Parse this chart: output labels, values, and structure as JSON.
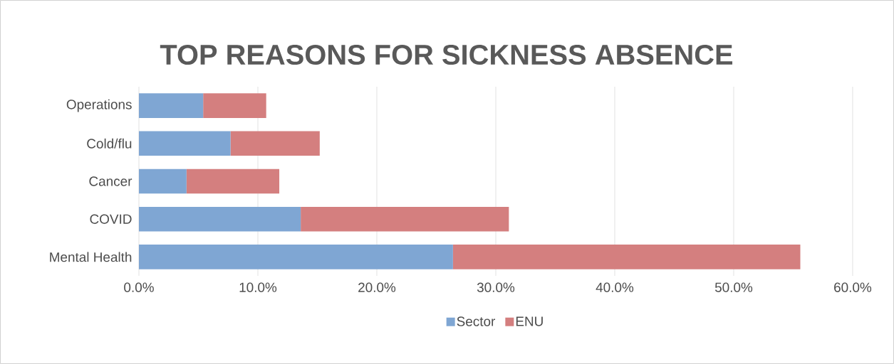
{
  "chart_data": {
    "type": "bar",
    "title": "TOP REASONS FOR SICKNESS ABSENCE",
    "orientation": "horizontal",
    "stacked": true,
    "categories": [
      "Operations",
      "Cold/flu",
      "Cancer",
      "COVID",
      "Mental Health"
    ],
    "series": [
      {
        "name": "Sector",
        "color": "#7fa6d3",
        "values": [
          5.4,
          7.7,
          4.0,
          13.6,
          26.4
        ]
      },
      {
        "name": "ENU",
        "color": "#d47f7f",
        "values": [
          5.3,
          7.5,
          7.8,
          17.5,
          29.2
        ]
      }
    ],
    "xlim": [
      0,
      60
    ],
    "xticks": [
      {
        "value": 0,
        "label": "0.0%"
      },
      {
        "value": 10,
        "label": "10.0%"
      },
      {
        "value": 20,
        "label": "20.0%"
      },
      {
        "value": 30,
        "label": "30.0%"
      },
      {
        "value": 40,
        "label": "40.0%"
      },
      {
        "value": 50,
        "label": "50.0%"
      },
      {
        "value": 60,
        "label": "60.0%"
      }
    ],
    "grid": "x",
    "legend": "bottom"
  }
}
